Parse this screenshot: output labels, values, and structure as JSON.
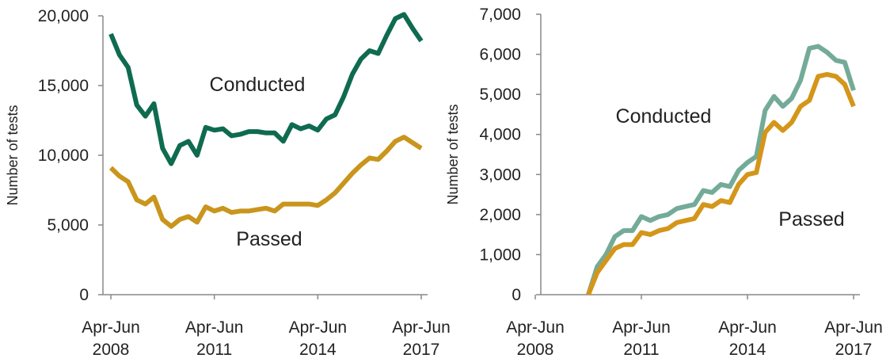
{
  "chart_data": [
    {
      "type": "line",
      "y_label": "Number of tests",
      "categories": [
        "Apr-Jun 2008",
        null,
        null,
        null,
        null,
        null,
        null,
        null,
        null,
        null,
        null,
        null,
        "Apr-Jun 2011",
        null,
        null,
        null,
        null,
        null,
        null,
        null,
        null,
        null,
        null,
        null,
        "Apr-Jun 2014",
        null,
        null,
        null,
        null,
        null,
        null,
        null,
        null,
        null,
        null,
        null,
        "Apr-Jun 2017"
      ],
      "series": [
        {
          "name": "Conducted",
          "color": "#0f6b50",
          "values": [
            18700,
            17200,
            16300,
            13600,
            12800,
            13700,
            10500,
            9400,
            10700,
            11000,
            10000,
            12000,
            11800,
            11900,
            11400,
            11500,
            11700,
            11700,
            11600,
            11600,
            11000,
            12200,
            11900,
            12100,
            11800,
            12600,
            12900,
            14200,
            15800,
            16900,
            17500,
            17300,
            18600,
            19800,
            20100,
            19100,
            18200
          ]
        },
        {
          "name": "Passed",
          "color": "#c9951c",
          "values": [
            9100,
            8500,
            8100,
            6800,
            6500,
            7000,
            5400,
            4900,
            5400,
            5600,
            5200,
            6300,
            6000,
            6200,
            5900,
            6000,
            6000,
            6100,
            6200,
            6000,
            6500,
            6500,
            6500,
            6500,
            6400,
            6800,
            7300,
            8000,
            8700,
            9300,
            9800,
            9700,
            10300,
            11000,
            11300,
            10900,
            10500
          ]
        }
      ],
      "ylim": [
        0,
        20000
      ],
      "yticks": [
        0,
        {
          "value": 5000,
          "label": "5,000"
        },
        {
          "value": 10000,
          "label": "10,000"
        },
        {
          "value": 15000,
          "label": "15,000"
        },
        {
          "value": 20000,
          "label": "20,000"
        }
      ]
    },
    {
      "type": "line",
      "y_label": "Number of tests",
      "categories": [
        "Apr-Jun 2008",
        null,
        null,
        null,
        null,
        null,
        null,
        null,
        null,
        null,
        null,
        null,
        "Apr-Jun 2011",
        null,
        null,
        null,
        null,
        null,
        null,
        null,
        null,
        null,
        null,
        null,
        "Apr-Jun 2014",
        null,
        null,
        null,
        null,
        null,
        null,
        null,
        null,
        null,
        null,
        null,
        "Apr-Jun 2017"
      ],
      "series": [
        {
          "name": "Conducted",
          "color": "#74ab98",
          "values": [
            null,
            null,
            null,
            null,
            null,
            null,
            0,
            700,
            1000,
            1450,
            1600,
            1600,
            1950,
            1850,
            1950,
            2000,
            2150,
            2200,
            2250,
            2600,
            2550,
            2750,
            2700,
            3100,
            3300,
            3450,
            4600,
            4950,
            4700,
            4900,
            5350,
            6150,
            6200,
            6050,
            5850,
            5800,
            5100
          ]
        },
        {
          "name": "Passed",
          "color": "#d4961a",
          "values": [
            null,
            null,
            null,
            null,
            null,
            null,
            0,
            550,
            850,
            1150,
            1250,
            1250,
            1550,
            1500,
            1600,
            1650,
            1800,
            1850,
            1900,
            2250,
            2200,
            2350,
            2300,
            2750,
            3000,
            3050,
            4050,
            4300,
            4100,
            4300,
            4700,
            4850,
            5450,
            5500,
            5450,
            5250,
            4700
          ]
        }
      ],
      "ylim": [
        0,
        7000
      ],
      "yticks": [
        0,
        {
          "value": 1000,
          "label": "1,000"
        },
        {
          "value": 2000,
          "label": "2,000"
        },
        {
          "value": 3000,
          "label": "3,000"
        },
        {
          "value": 4000,
          "label": "4,000"
        },
        {
          "value": 5000,
          "label": "5,000"
        },
        {
          "value": 6000,
          "label": "6,000"
        },
        {
          "value": 7000,
          "label": "7,000"
        }
      ]
    }
  ]
}
